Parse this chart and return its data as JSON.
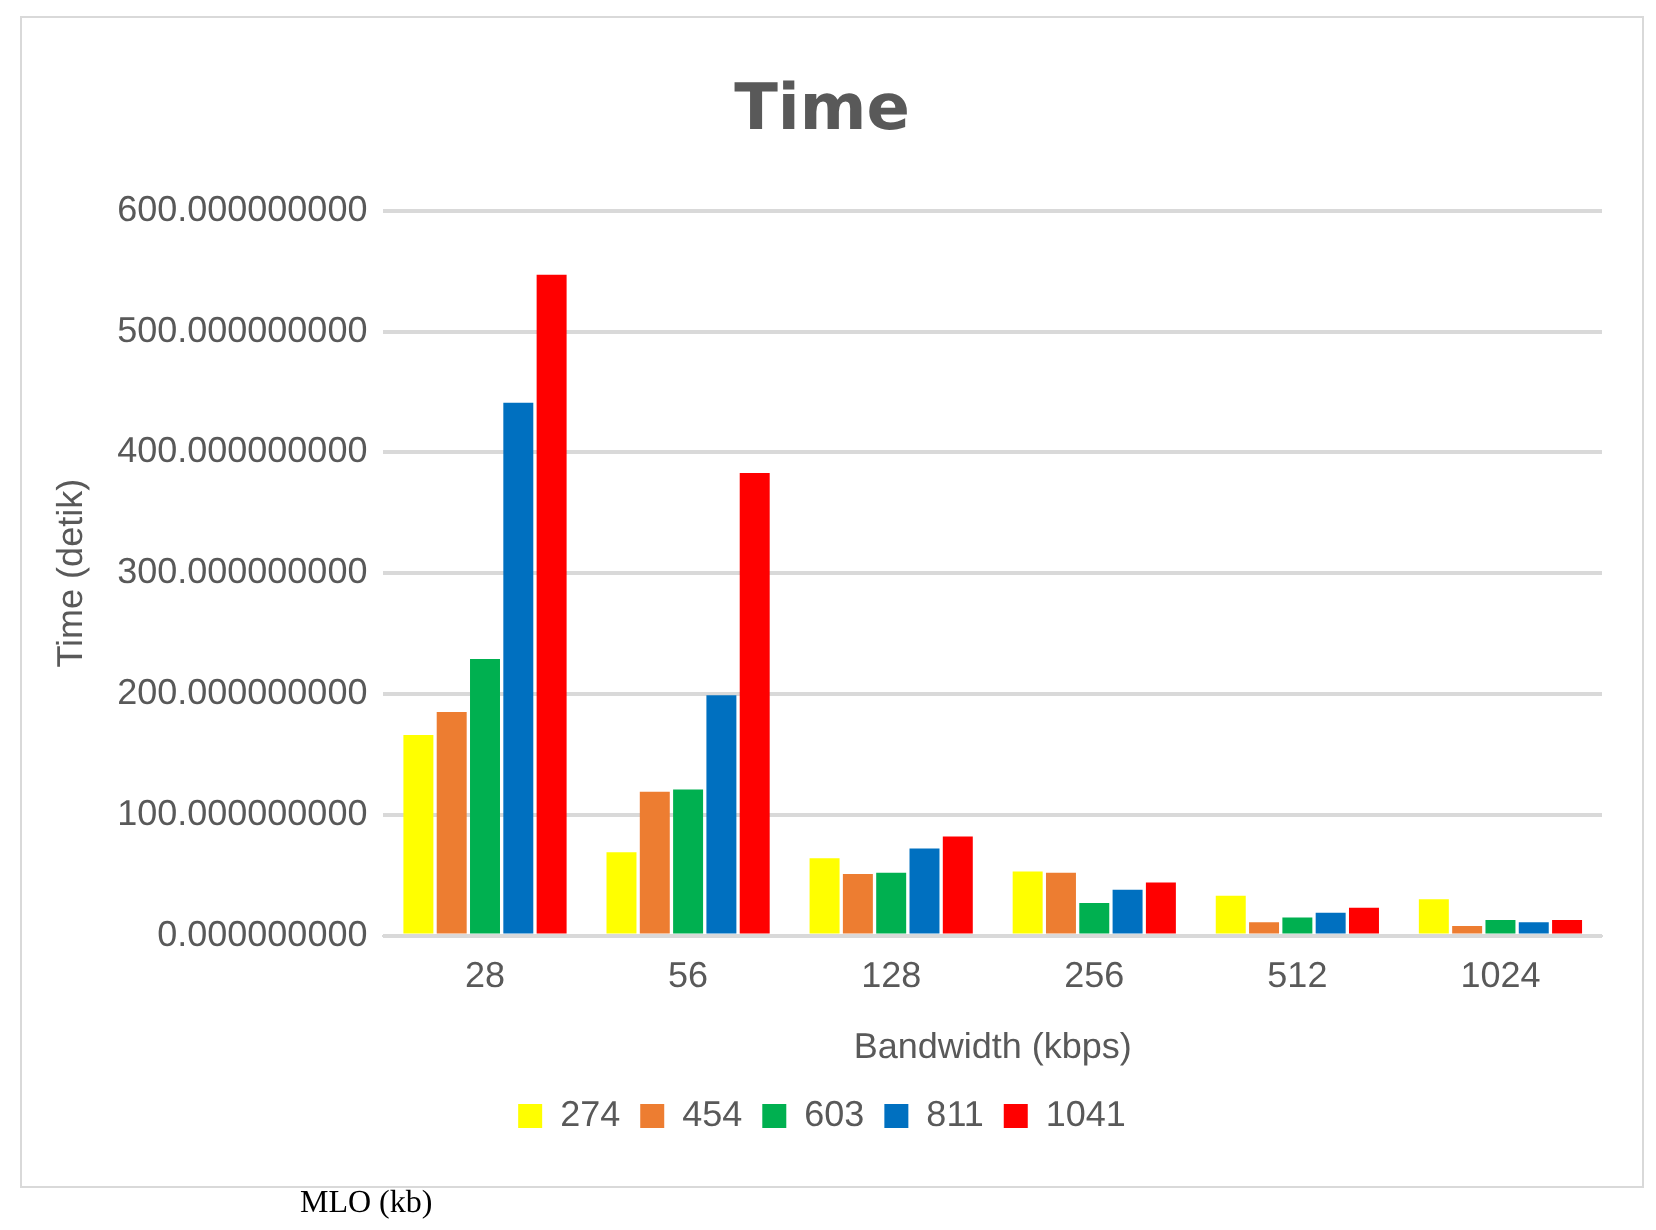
{
  "chart_data": {
    "type": "bar",
    "title": "Time",
    "xlabel": "Bandwidth (kbps)",
    "ylabel": "Time (detik)",
    "categories": [
      "28",
      "56",
      "128",
      "256",
      "512",
      "1024"
    ],
    "series": [
      {
        "name": "274",
        "color": "#ffff00",
        "values": [
          166,
          69,
          64,
          53,
          33,
          30
        ]
      },
      {
        "name": "454",
        "color": "#ed7d31",
        "values": [
          185,
          119,
          51,
          52,
          11,
          8
        ]
      },
      {
        "name": "603",
        "color": "#00b050",
        "values": [
          229,
          121,
          52,
          27,
          15,
          13
        ]
      },
      {
        "name": "811",
        "color": "#0070c0",
        "values": [
          441,
          199,
          72,
          38,
          19,
          11
        ]
      },
      {
        "name": "1041",
        "color": "#ff0000",
        "values": [
          547,
          383,
          82,
          44,
          23,
          13
        ]
      }
    ],
    "ylim": [
      0,
      600
    ],
    "yticks": [
      {
        "value": 0,
        "label": "0.000000000"
      },
      {
        "value": 100,
        "label": "100.000000000"
      },
      {
        "value": 200,
        "label": "200.000000000"
      },
      {
        "value": 300,
        "label": "300.000000000"
      },
      {
        "value": 400,
        "label": "400.000000000"
      },
      {
        "value": 500,
        "label": "500.000000000"
      },
      {
        "value": 600,
        "label": "600.000000000"
      }
    ],
    "grid": "y",
    "legend": "bottom",
    "annotations": [
      "MLO (kb)"
    ]
  }
}
